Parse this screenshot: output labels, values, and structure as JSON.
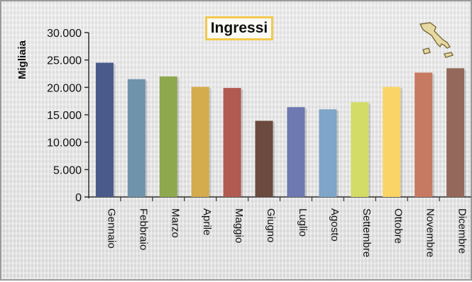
{
  "chart_data": {
    "type": "bar",
    "title": "Ingressi",
    "ylabel": "Migliaia",
    "xlabel": "",
    "ylim": [
      0,
      30000
    ],
    "yticks": [
      "30.000",
      "25.000",
      "20.000",
      "15.000",
      "10.000",
      "5.000",
      "0"
    ],
    "ytick_values": [
      30000,
      25000,
      20000,
      15000,
      10000,
      5000,
      0
    ],
    "grid": false,
    "legend": "none",
    "categories": [
      "Gennaio",
      "Febbraio",
      "Marzo",
      "Aprile",
      "Maggio",
      "Giugno",
      "Luglio",
      "Agosto",
      "Settembre",
      "Ottobre",
      "Novembre",
      "Dicembre"
    ],
    "values": [
      24500,
      21500,
      22000,
      20100,
      19900,
      13900,
      16400,
      16000,
      17300,
      20100,
      22700,
      23500
    ],
    "colors": [
      "#4a5a8a",
      "#6f93ab",
      "#8ea84e",
      "#d4ab4d",
      "#b05a52",
      "#6b4a3f",
      "#6d79b0",
      "#7fa5c8",
      "#d2dc66",
      "#fbd467",
      "#c77a62",
      "#94695c"
    ]
  },
  "decoration": {
    "map_icon": "italy-map-icon"
  }
}
